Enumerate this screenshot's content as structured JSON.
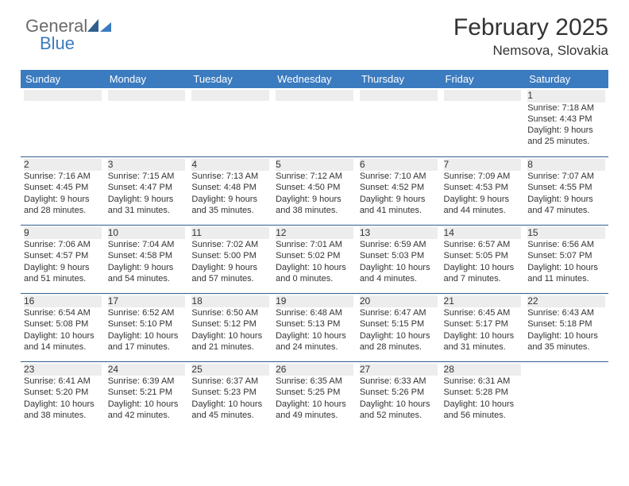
{
  "logo": {
    "general": "General",
    "blue": "Blue"
  },
  "title": "February 2025",
  "location": "Nemsova, Slovakia",
  "colors": {
    "header_bg": "#3b7bbf",
    "header_text": "#ffffff",
    "daynum_bg": "#ededed",
    "row_border": "#2f5f8f",
    "text": "#333333",
    "logo_gray": "#6b6b6b",
    "logo_blue": "#3b7bbf",
    "background": "#ffffff"
  },
  "columns": [
    "Sunday",
    "Monday",
    "Tuesday",
    "Wednesday",
    "Thursday",
    "Friday",
    "Saturday"
  ],
  "weeks": [
    [
      null,
      null,
      null,
      null,
      null,
      null,
      {
        "n": "1",
        "sr": "Sunrise: 7:18 AM",
        "ss": "Sunset: 4:43 PM",
        "d1": "Daylight: 9 hours",
        "d2": "and 25 minutes."
      }
    ],
    [
      {
        "n": "2",
        "sr": "Sunrise: 7:16 AM",
        "ss": "Sunset: 4:45 PM",
        "d1": "Daylight: 9 hours",
        "d2": "and 28 minutes."
      },
      {
        "n": "3",
        "sr": "Sunrise: 7:15 AM",
        "ss": "Sunset: 4:47 PM",
        "d1": "Daylight: 9 hours",
        "d2": "and 31 minutes."
      },
      {
        "n": "4",
        "sr": "Sunrise: 7:13 AM",
        "ss": "Sunset: 4:48 PM",
        "d1": "Daylight: 9 hours",
        "d2": "and 35 minutes."
      },
      {
        "n": "5",
        "sr": "Sunrise: 7:12 AM",
        "ss": "Sunset: 4:50 PM",
        "d1": "Daylight: 9 hours",
        "d2": "and 38 minutes."
      },
      {
        "n": "6",
        "sr": "Sunrise: 7:10 AM",
        "ss": "Sunset: 4:52 PM",
        "d1": "Daylight: 9 hours",
        "d2": "and 41 minutes."
      },
      {
        "n": "7",
        "sr": "Sunrise: 7:09 AM",
        "ss": "Sunset: 4:53 PM",
        "d1": "Daylight: 9 hours",
        "d2": "and 44 minutes."
      },
      {
        "n": "8",
        "sr": "Sunrise: 7:07 AM",
        "ss": "Sunset: 4:55 PM",
        "d1": "Daylight: 9 hours",
        "d2": "and 47 minutes."
      }
    ],
    [
      {
        "n": "9",
        "sr": "Sunrise: 7:06 AM",
        "ss": "Sunset: 4:57 PM",
        "d1": "Daylight: 9 hours",
        "d2": "and 51 minutes."
      },
      {
        "n": "10",
        "sr": "Sunrise: 7:04 AM",
        "ss": "Sunset: 4:58 PM",
        "d1": "Daylight: 9 hours",
        "d2": "and 54 minutes."
      },
      {
        "n": "11",
        "sr": "Sunrise: 7:02 AM",
        "ss": "Sunset: 5:00 PM",
        "d1": "Daylight: 9 hours",
        "d2": "and 57 minutes."
      },
      {
        "n": "12",
        "sr": "Sunrise: 7:01 AM",
        "ss": "Sunset: 5:02 PM",
        "d1": "Daylight: 10 hours",
        "d2": "and 0 minutes."
      },
      {
        "n": "13",
        "sr": "Sunrise: 6:59 AM",
        "ss": "Sunset: 5:03 PM",
        "d1": "Daylight: 10 hours",
        "d2": "and 4 minutes."
      },
      {
        "n": "14",
        "sr": "Sunrise: 6:57 AM",
        "ss": "Sunset: 5:05 PM",
        "d1": "Daylight: 10 hours",
        "d2": "and 7 minutes."
      },
      {
        "n": "15",
        "sr": "Sunrise: 6:56 AM",
        "ss": "Sunset: 5:07 PM",
        "d1": "Daylight: 10 hours",
        "d2": "and 11 minutes."
      }
    ],
    [
      {
        "n": "16",
        "sr": "Sunrise: 6:54 AM",
        "ss": "Sunset: 5:08 PM",
        "d1": "Daylight: 10 hours",
        "d2": "and 14 minutes."
      },
      {
        "n": "17",
        "sr": "Sunrise: 6:52 AM",
        "ss": "Sunset: 5:10 PM",
        "d1": "Daylight: 10 hours",
        "d2": "and 17 minutes."
      },
      {
        "n": "18",
        "sr": "Sunrise: 6:50 AM",
        "ss": "Sunset: 5:12 PM",
        "d1": "Daylight: 10 hours",
        "d2": "and 21 minutes."
      },
      {
        "n": "19",
        "sr": "Sunrise: 6:48 AM",
        "ss": "Sunset: 5:13 PM",
        "d1": "Daylight: 10 hours",
        "d2": "and 24 minutes."
      },
      {
        "n": "20",
        "sr": "Sunrise: 6:47 AM",
        "ss": "Sunset: 5:15 PM",
        "d1": "Daylight: 10 hours",
        "d2": "and 28 minutes."
      },
      {
        "n": "21",
        "sr": "Sunrise: 6:45 AM",
        "ss": "Sunset: 5:17 PM",
        "d1": "Daylight: 10 hours",
        "d2": "and 31 minutes."
      },
      {
        "n": "22",
        "sr": "Sunrise: 6:43 AM",
        "ss": "Sunset: 5:18 PM",
        "d1": "Daylight: 10 hours",
        "d2": "and 35 minutes."
      }
    ],
    [
      {
        "n": "23",
        "sr": "Sunrise: 6:41 AM",
        "ss": "Sunset: 5:20 PM",
        "d1": "Daylight: 10 hours",
        "d2": "and 38 minutes."
      },
      {
        "n": "24",
        "sr": "Sunrise: 6:39 AM",
        "ss": "Sunset: 5:21 PM",
        "d1": "Daylight: 10 hours",
        "d2": "and 42 minutes."
      },
      {
        "n": "25",
        "sr": "Sunrise: 6:37 AM",
        "ss": "Sunset: 5:23 PM",
        "d1": "Daylight: 10 hours",
        "d2": "and 45 minutes."
      },
      {
        "n": "26",
        "sr": "Sunrise: 6:35 AM",
        "ss": "Sunset: 5:25 PM",
        "d1": "Daylight: 10 hours",
        "d2": "and 49 minutes."
      },
      {
        "n": "27",
        "sr": "Sunrise: 6:33 AM",
        "ss": "Sunset: 5:26 PM",
        "d1": "Daylight: 10 hours",
        "d2": "and 52 minutes."
      },
      {
        "n": "28",
        "sr": "Sunrise: 6:31 AM",
        "ss": "Sunset: 5:28 PM",
        "d1": "Daylight: 10 hours",
        "d2": "and 56 minutes."
      },
      null
    ]
  ]
}
